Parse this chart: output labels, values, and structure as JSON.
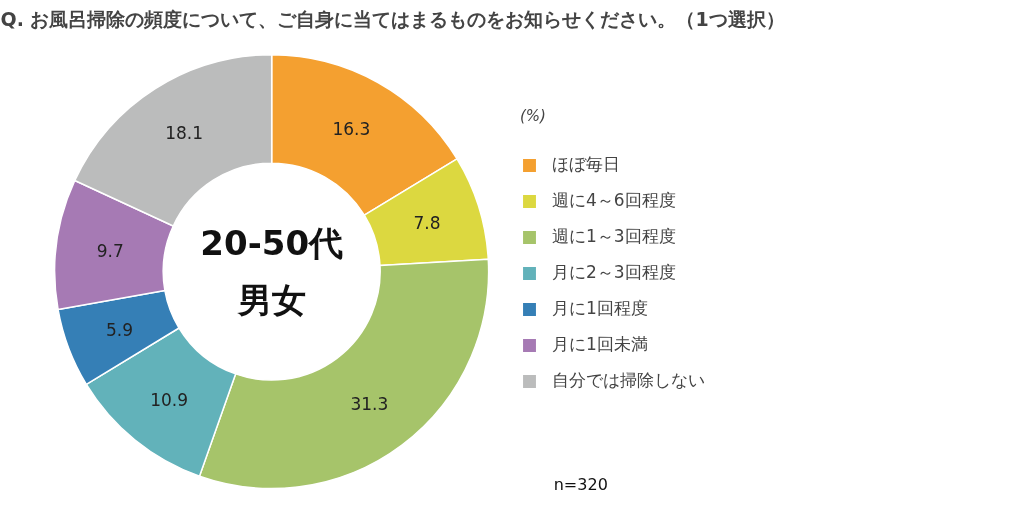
{
  "chart_data": {
    "type": "donut",
    "title": "Q. お風呂掃除の頻度について、ご自身に当てはまるものをお知らせください。（1つ選択）",
    "categories": [
      "ほぼ毎日",
      "週に4～6回程度",
      "週に1～3回程度",
      "月に2～3回程度",
      "月に1回程度",
      "月に1回未満",
      "自分では掃除しない"
    ],
    "values": [
      16.3,
      7.8,
      31.3,
      10.9,
      5.9,
      9.7,
      18.1
    ],
    "colors": [
      "#f4a030",
      "#dcd840",
      "#a6c46a",
      "#62b2ba",
      "#357fb6",
      "#a67ab4",
      "#bbbcbc"
    ],
    "data_labels": true,
    "legend": "right",
    "legend_title": "(%)",
    "annotations": [
      "20-50代",
      "男女",
      "n=320"
    ]
  }
}
